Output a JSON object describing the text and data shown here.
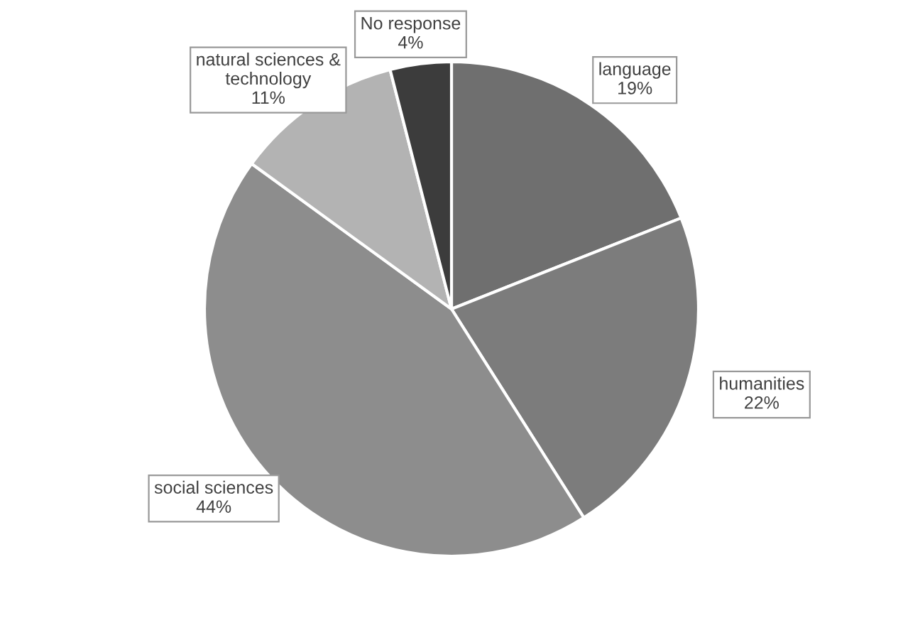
{
  "chart_data": {
    "type": "pie",
    "categories": [
      "language",
      "humanities",
      "social sciences",
      "natural sciences &\ntechnology",
      "No response"
    ],
    "values": [
      19,
      22,
      44,
      11,
      4
    ],
    "value_labels": [
      "19%",
      "22%",
      "44%",
      "11%",
      "4%"
    ],
    "colors": [
      "#6f6f6f",
      "#7c7c7c",
      "#8d8d8d",
      "#b3b3b3",
      "#3c3c3c"
    ]
  }
}
